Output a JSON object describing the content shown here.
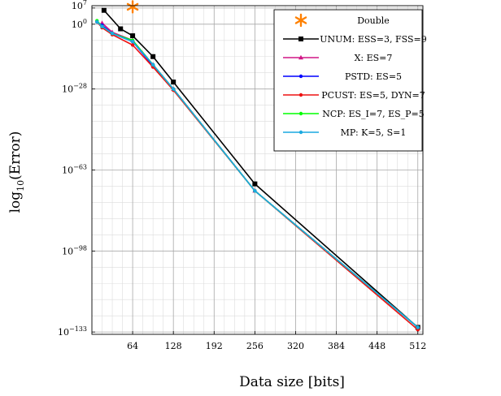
{
  "chart_data": {
    "type": "line",
    "title": "",
    "xlabel": "Data size [bits]",
    "ylabel": "log10(Error)",
    "ylabel_base": "log",
    "ylabel_sub": "10",
    "ylabel_tail": "(Error)",
    "xlim": [
      0,
      520
    ],
    "ylim": [
      -134,
      8
    ],
    "x_ticks": [
      64,
      128,
      192,
      256,
      320,
      384,
      448,
      512
    ],
    "x_tick_labels": [
      "64",
      "128",
      "192",
      "256",
      "320",
      "384",
      "448",
      "512"
    ],
    "y_ticks": [
      {
        "value": 7,
        "base": "10",
        "exp": "7"
      },
      {
        "value": 0,
        "base": "10",
        "exp": "0"
      },
      {
        "value": -28,
        "base": "10",
        "exp": "−28"
      },
      {
        "value": -63,
        "base": "10",
        "exp": "−63"
      },
      {
        "value": -98,
        "base": "10",
        "exp": "−98"
      },
      {
        "value": -133,
        "base": "10",
        "exp": "−133"
      }
    ],
    "grid": true,
    "legend_position": "top-right",
    "series": [
      {
        "name": "Double",
        "color": "#ff8000",
        "marker": "asterisk",
        "line": false,
        "x": [
          64
        ],
        "y": [
          7.5
        ]
      },
      {
        "name": "UNUM: ESS=3, FSS=9",
        "color": "#000000",
        "marker": "square",
        "line": true,
        "x": [
          19,
          45,
          64,
          96,
          128,
          256,
          512
        ],
        "y": [
          6,
          -2,
          -5,
          -14,
          -25,
          -69,
          -131
        ]
      },
      {
        "name": "X: ES=7",
        "color": "#d11686",
        "marker": "triangle",
        "line": true,
        "x": [
          16,
          32,
          64,
          96,
          128,
          256,
          512
        ],
        "y": [
          0.5,
          -3.5,
          -7,
          -17.5,
          -28,
          -72,
          -131
        ]
      },
      {
        "name": "PSTD: ES=5",
        "color": "#0000ff",
        "marker": "circle",
        "line": true,
        "x": [
          8,
          16,
          32,
          64,
          96,
          128,
          256,
          512
        ],
        "y": [
          1,
          -0.5,
          -4,
          -7.5,
          -18,
          -28,
          -72,
          -131
        ]
      },
      {
        "name": "PCUST: ES=5, DYN=7",
        "color": "#ee1111",
        "marker": "circle",
        "line": true,
        "x": [
          8,
          16,
          32,
          64,
          96,
          128,
          256,
          512
        ],
        "y": [
          1,
          -1.5,
          -4.5,
          -9,
          -18.5,
          -28.5,
          -72,
          -132
        ]
      },
      {
        "name": "NCP: ES_I=7, ES_P=5",
        "color": "#00ff00",
        "marker": "circle",
        "line": true,
        "x": [
          8,
          16,
          32,
          64,
          96,
          128,
          256,
          512
        ],
        "y": [
          1.5,
          -1,
          -4,
          -7,
          -17.5,
          -28,
          -72,
          -131
        ]
      },
      {
        "name": "MP: K=5, S=1",
        "color": "#1aa9e0",
        "marker": "circle",
        "line": true,
        "x": [
          8,
          16,
          32,
          64,
          96,
          128,
          256,
          512
        ],
        "y": [
          1,
          -1,
          -4,
          -7.5,
          -17.5,
          -28,
          -72,
          -131
        ]
      }
    ]
  }
}
